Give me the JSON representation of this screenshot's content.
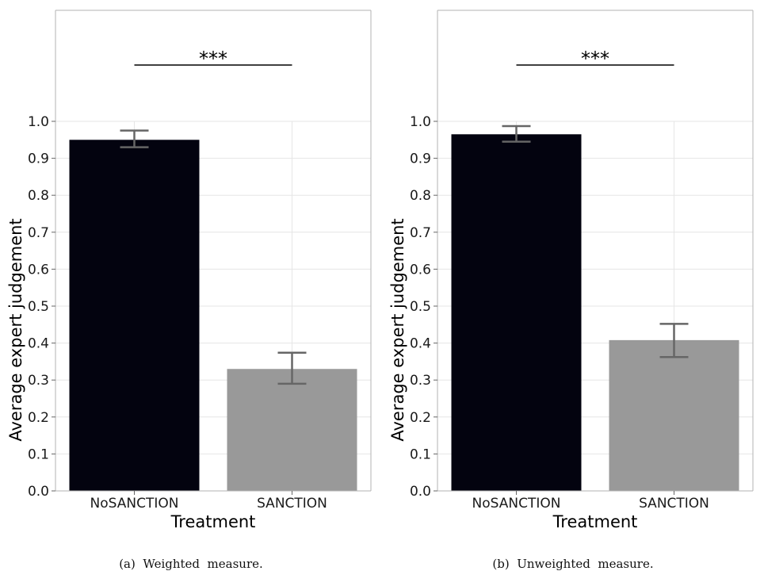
{
  "chart_data": [
    {
      "type": "bar",
      "categories": [
        "NoSANCTION",
        "SANCTION"
      ],
      "values": [
        0.95,
        0.33
      ],
      "errors": [
        [
          0.93,
          0.975
        ],
        [
          0.29,
          0.374
        ]
      ],
      "colors": [
        "#03030f",
        "#999999"
      ],
      "xlabel": "Treatment",
      "ylabel": "Average expert judgement",
      "ylim": [
        0,
        1
      ],
      "yticks": [
        "0.0",
        "0.1",
        "0.2",
        "0.3",
        "0.4",
        "0.5",
        "0.6",
        "0.7",
        "0.8",
        "0.9",
        "1.0"
      ],
      "significance": "***",
      "caption": "(a)  Weighted  measure.",
      "grid": true
    },
    {
      "type": "bar",
      "categories": [
        "NoSANCTION",
        "SANCTION"
      ],
      "values": [
        0.965,
        0.408
      ],
      "errors": [
        [
          0.945,
          0.987
        ],
        [
          0.362,
          0.452
        ]
      ],
      "colors": [
        "#03030f",
        "#999999"
      ],
      "xlabel": "Treatment",
      "ylabel": "Average expert judgement",
      "ylim": [
        0,
        1
      ],
      "yticks": [
        "0.0",
        "0.1",
        "0.2",
        "0.3",
        "0.4",
        "0.5",
        "0.6",
        "0.7",
        "0.8",
        "0.9",
        "1.0"
      ],
      "significance": "***",
      "caption": "(b)  Unweighted  measure.",
      "grid": true
    }
  ]
}
